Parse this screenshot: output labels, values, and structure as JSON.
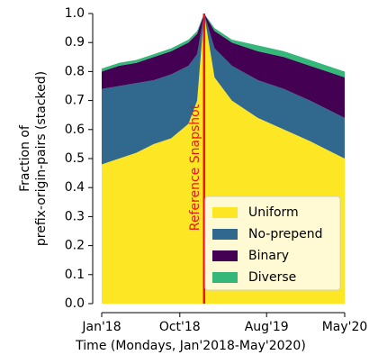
{
  "chart_data": {
    "type": "stacked-area",
    "xlabel": "Time (Mondays, Jan'2018-May'2020)",
    "ylabel": [
      "Fraction of",
      "prefix-origin-pairs (stacked)"
    ],
    "x": [
      0,
      2,
      4,
      6,
      8,
      10,
      11,
      11.8,
      13,
      15,
      18,
      21,
      24,
      26,
      28
    ],
    "series": [
      {
        "name": "Uniform",
        "color": "#fde725",
        "values": [
          0.48,
          0.5,
          0.52,
          0.55,
          0.57,
          0.62,
          0.7,
          1.0,
          0.78,
          0.7,
          0.64,
          0.6,
          0.56,
          0.53,
          0.5
        ]
      },
      {
        "name": "No-prepend",
        "color": "#31688e",
        "values": [
          0.26,
          0.25,
          0.24,
          0.22,
          0.22,
          0.2,
          0.16,
          0,
          0.1,
          0.12,
          0.13,
          0.14,
          0.14,
          0.14,
          0.14
        ]
      },
      {
        "name": "Binary",
        "color": "#440154",
        "values": [
          0.06,
          0.07,
          0.07,
          0.08,
          0.08,
          0.08,
          0.07,
          0,
          0.06,
          0.08,
          0.1,
          0.11,
          0.12,
          0.13,
          0.14
        ]
      },
      {
        "name": "Diverse",
        "color": "#35b779",
        "values": [
          0.01,
          0.01,
          0.01,
          0.01,
          0.01,
          0.01,
          0.01,
          0,
          0.01,
          0.01,
          0.02,
          0.02,
          0.02,
          0.02,
          0.02
        ]
      }
    ],
    "xlim": [
      0,
      28
    ],
    "xticks": [
      {
        "value": 0,
        "label": "Jan'18"
      },
      {
        "value": 9,
        "label": "Oct'18"
      },
      {
        "value": 19,
        "label": "Aug'19"
      },
      {
        "value": 28,
        "label": "May'20"
      }
    ],
    "ylim": [
      0,
      1
    ],
    "yticks": [
      {
        "value": 0,
        "label": "0.0"
      },
      0.1,
      0.2,
      0.3,
      0.4,
      0.5,
      0.6,
      0.7,
      0.8,
      0.9,
      {
        "value": 1,
        "label": "1.0"
      }
    ],
    "reference_line": {
      "x": 11.8,
      "label": "Reference Snapshot",
      "color": "#e8141c"
    },
    "legend": "lower right"
  }
}
